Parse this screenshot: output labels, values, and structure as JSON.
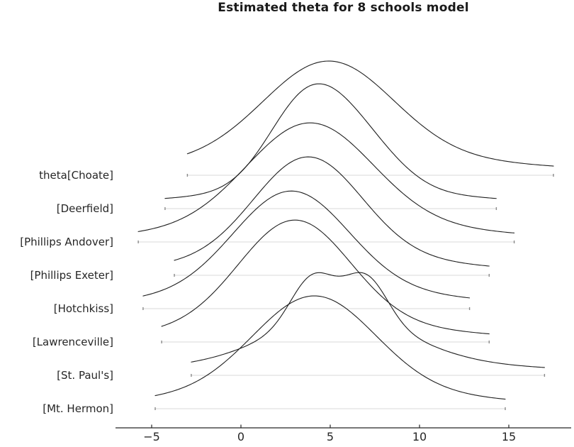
{
  "chart_data": {
    "type": "ridgeline",
    "title": "Estimated theta for 8 schools model",
    "xlabel": "",
    "ylabel": "",
    "xlim": [
      -7.0,
      18.5
    ],
    "grid": false,
    "legend": false,
    "x_ticks": {
      "values": [
        -5,
        0,
        5,
        10,
        15
      ],
      "labels": [
        "−5",
        "0",
        "5",
        "10",
        "15"
      ]
    },
    "colors": {
      "curve": "#1f1f1f",
      "support_line": "#d9d9d9",
      "endpoint_tick": "#8a8a8a",
      "axis": "#262626",
      "tick_label": "#262626",
      "row_label": "#262626",
      "title": "#1a1a1a"
    },
    "series": [
      {
        "label": "theta[Choate]",
        "x_range": [
          -3.0,
          17.5
        ],
        "peak_x": 4.9,
        "components": [
          {
            "mu": 4.9,
            "sigma": 3.6,
            "amp": 135
          },
          {
            "mu": 5.5,
            "sigma": 10.0,
            "amp": 26
          }
        ]
      },
      {
        "label": "[Deerfield]",
        "x_range": [
          -4.25,
          14.3
        ],
        "peak_x": 3.85,
        "components": [
          {
            "mu": 3.7,
            "sigma": 2.2,
            "amp": 125
          },
          {
            "mu": 6.8,
            "sigma": 2.2,
            "amp": 60
          },
          {
            "mu": 5.0,
            "sigma": 9.0,
            "amp": 24
          }
        ]
      },
      {
        "label": "[Phillips Andover]",
        "x_range": [
          -5.75,
          15.3
        ],
        "peak_x": 3.85,
        "components": [
          {
            "mu": 3.85,
            "sigma": 3.5,
            "amp": 145
          },
          {
            "mu": 5.0,
            "sigma": 9.0,
            "amp": 23
          }
        ]
      },
      {
        "label": "[Phillips Exeter]",
        "x_range": [
          -3.73,
          13.9
        ],
        "peak_x": 3.75,
        "components": [
          {
            "mu": 3.75,
            "sigma": 3.0,
            "amp": 142
          },
          {
            "mu": 4.5,
            "sigma": 8.0,
            "amp": 25
          }
        ]
      },
      {
        "label": "[Hotchkiss]",
        "x_range": [
          -5.48,
          12.8
        ],
        "peak_x": 2.8,
        "components": [
          {
            "mu": 2.8,
            "sigma": 3.2,
            "amp": 142
          },
          {
            "mu": 4.0,
            "sigma": 8.5,
            "amp": 24
          }
        ]
      },
      {
        "label": "[Lawrenceville]",
        "x_range": [
          -4.44,
          13.9
        ],
        "peak_x": 3.0,
        "components": [
          {
            "mu": 3.0,
            "sigma": 3.1,
            "amp": 148
          },
          {
            "mu": 4.0,
            "sigma": 8.0,
            "amp": 24
          }
        ]
      },
      {
        "label": "[St. Paul's]",
        "x_range": [
          -2.78,
          17.0
        ],
        "peak_x": 4.0,
        "bimodal": true,
        "components": [
          {
            "mu": 4.0,
            "sigma": 1.2,
            "amp": 62
          },
          {
            "mu": 7.0,
            "sigma": 1.2,
            "amp": 62
          },
          {
            "mu": 5.5,
            "sigma": 3.8,
            "amp": 65
          },
          {
            "mu": 6.0,
            "sigma": 10.5,
            "amp": 18
          }
        ]
      },
      {
        "label": "[Mt. Hermon]",
        "x_range": [
          -4.8,
          14.8
        ],
        "peak_x": 4.1,
        "components": [
          {
            "mu": 4.1,
            "sigma": 3.4,
            "amp": 135
          },
          {
            "mu": 4.5,
            "sigma": 9.0,
            "amp": 24
          }
        ]
      }
    ]
  }
}
